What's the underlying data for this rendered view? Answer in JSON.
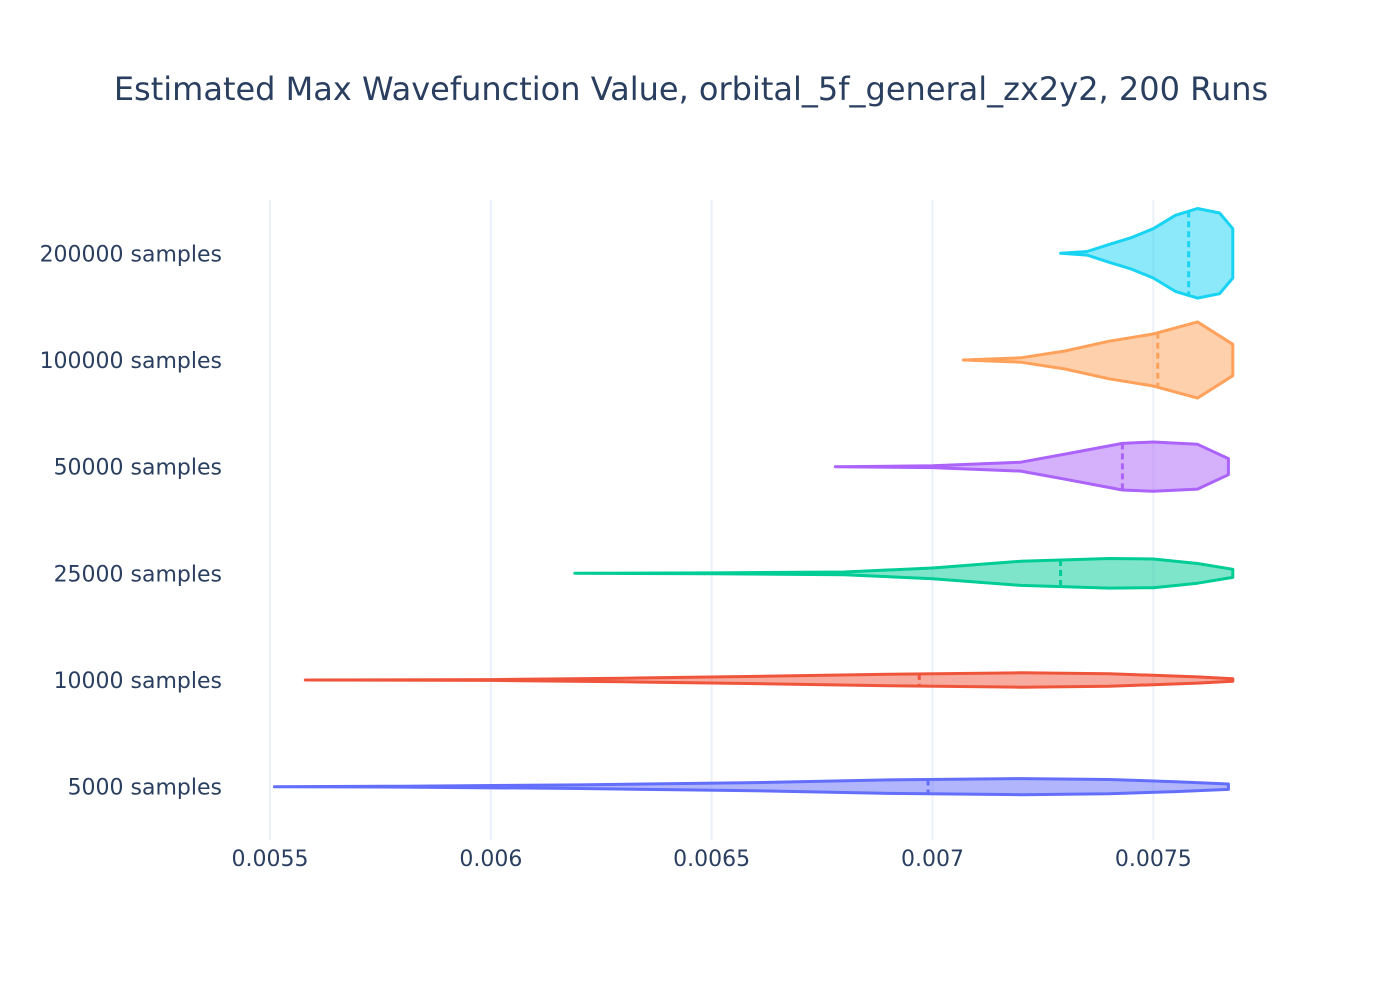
{
  "chart_data": {
    "type": "violin",
    "orientation": "horizontal",
    "title": "Estimated Max Wavefunction Value, orbital_5f_general_zx2y2, 200 Runs",
    "xlabel": "",
    "ylabel": "",
    "xlim": [
      0.0055,
      0.0079
    ],
    "x_ticks": [
      "0.0055",
      "0.006",
      "0.0065",
      "0.007",
      "0.0075"
    ],
    "x_tick_values": [
      0.0055,
      0.006,
      0.0065,
      0.007,
      0.0075
    ],
    "grid": "vertical",
    "legend": "none",
    "categories": [
      "5000 samples",
      "10000 samples",
      "25000 samples",
      "50000 samples",
      "100000 samples",
      "200000 samples"
    ],
    "series": [
      {
        "category": "5000 samples",
        "color": "#636efa",
        "min": 0.00551,
        "max": 0.00767,
        "median": 0.00699,
        "density": [
          [
            0.00551,
            0.0
          ],
          [
            0.0058,
            0.01
          ],
          [
            0.0062,
            0.04
          ],
          [
            0.0066,
            0.09
          ],
          [
            0.0069,
            0.15
          ],
          [
            0.0072,
            0.18
          ],
          [
            0.0074,
            0.16
          ],
          [
            0.00755,
            0.11
          ],
          [
            0.00767,
            0.06
          ]
        ]
      },
      {
        "category": "10000 samples",
        "color": "#ef553b",
        "min": 0.00558,
        "max": 0.00768,
        "median": 0.00697,
        "density": [
          [
            0.00558,
            0.0
          ],
          [
            0.006,
            0.01
          ],
          [
            0.0063,
            0.04
          ],
          [
            0.0066,
            0.08
          ],
          [
            0.0069,
            0.13
          ],
          [
            0.0072,
            0.16
          ],
          [
            0.0074,
            0.14
          ],
          [
            0.0076,
            0.07
          ],
          [
            0.00768,
            0.03
          ]
        ]
      },
      {
        "category": "25000 samples",
        "color": "#00cc96",
        "min": 0.00619,
        "max": 0.00768,
        "median": 0.00729,
        "density": [
          [
            0.00619,
            0.0
          ],
          [
            0.0065,
            0.01
          ],
          [
            0.0068,
            0.03
          ],
          [
            0.007,
            0.12
          ],
          [
            0.0072,
            0.27
          ],
          [
            0.0074,
            0.33
          ],
          [
            0.0075,
            0.32
          ],
          [
            0.0076,
            0.22
          ],
          [
            0.00768,
            0.09
          ]
        ]
      },
      {
        "category": "50000 samples",
        "color": "#ab63fa",
        "min": 0.00678,
        "max": 0.00767,
        "median": 0.00743,
        "density": [
          [
            0.00678,
            0.0
          ],
          [
            0.007,
            0.02
          ],
          [
            0.0072,
            0.1
          ],
          [
            0.0073,
            0.28
          ],
          [
            0.00743,
            0.52
          ],
          [
            0.0075,
            0.55
          ],
          [
            0.0076,
            0.5
          ],
          [
            0.00767,
            0.18
          ]
        ]
      },
      {
        "category": "100000 samples",
        "color": "#ffa15a",
        "min": 0.00707,
        "max": 0.00768,
        "median": 0.00751,
        "density": [
          [
            0.00707,
            0.0
          ],
          [
            0.0072,
            0.05
          ],
          [
            0.0073,
            0.2
          ],
          [
            0.0074,
            0.42
          ],
          [
            0.0075,
            0.58
          ],
          [
            0.0076,
            0.85
          ],
          [
            0.00768,
            0.35
          ]
        ]
      },
      {
        "category": "200000 samples",
        "color": "#19d3f3",
        "min": 0.00729,
        "max": 0.00768,
        "median": 0.00758,
        "density": [
          [
            0.00729,
            0.0
          ],
          [
            0.00735,
            0.04
          ],
          [
            0.0074,
            0.2
          ],
          [
            0.00745,
            0.35
          ],
          [
            0.0075,
            0.55
          ],
          [
            0.00755,
            0.85
          ],
          [
            0.0076,
            1.0
          ],
          [
            0.00765,
            0.9
          ],
          [
            0.00768,
            0.55
          ]
        ]
      }
    ]
  }
}
